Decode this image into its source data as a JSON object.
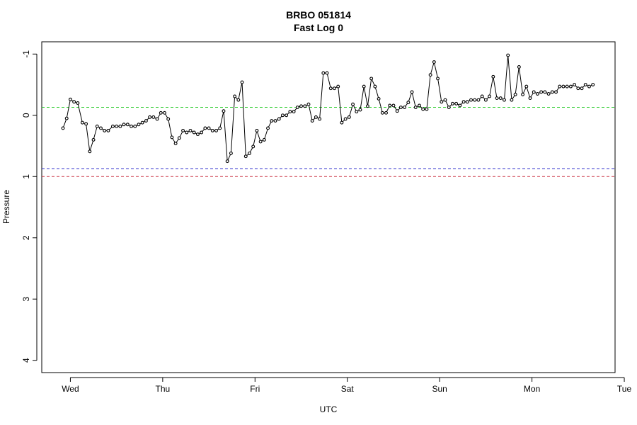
{
  "chart_data": {
    "type": "line",
    "title": "BRBO 051814",
    "subtitle": "Fast Log 0",
    "xlabel": "UTC",
    "ylabel": "Pressure",
    "x_ticks": [
      "Wed",
      "Thu",
      "Fri",
      "Sat",
      "Sun",
      "Mon",
      "Tue"
    ],
    "y_ticks": [
      -1,
      0,
      1,
      2,
      3,
      4
    ],
    "y_tick_labels": [
      "-1",
      "0",
      "1",
      "2",
      "3",
      "4"
    ],
    "ylim": [
      4.2,
      -1.2
    ],
    "xlim_days": [
      -0.31,
      5.9
    ],
    "y_reversed": true,
    "grid": false,
    "series": [
      {
        "color": "#000000",
        "marker": "circle",
        "points": [
          [
            -0.08,
            0.21
          ],
          [
            -0.04,
            0.05
          ],
          [
            0.0,
            -0.26
          ],
          [
            0.04,
            -0.22
          ],
          [
            0.08,
            -0.2
          ],
          [
            0.13,
            0.12
          ],
          [
            0.17,
            0.14
          ],
          [
            0.21,
            0.59
          ],
          [
            0.25,
            0.4
          ],
          [
            0.29,
            0.18
          ],
          [
            0.33,
            0.21
          ],
          [
            0.37,
            0.25
          ],
          [
            0.41,
            0.25
          ],
          [
            0.46,
            0.18
          ],
          [
            0.5,
            0.18
          ],
          [
            0.54,
            0.18
          ],
          [
            0.58,
            0.15
          ],
          [
            0.62,
            0.15
          ],
          [
            0.66,
            0.18
          ],
          [
            0.7,
            0.18
          ],
          [
            0.74,
            0.15
          ],
          [
            0.78,
            0.12
          ],
          [
            0.82,
            0.09
          ],
          [
            0.86,
            0.03
          ],
          [
            0.9,
            0.03
          ],
          [
            0.94,
            0.06
          ],
          [
            0.98,
            -0.04
          ],
          [
            1.02,
            -0.04
          ],
          [
            1.06,
            0.06
          ],
          [
            1.1,
            0.36
          ],
          [
            1.14,
            0.46
          ],
          [
            1.18,
            0.37
          ],
          [
            1.22,
            0.25
          ],
          [
            1.26,
            0.28
          ],
          [
            1.3,
            0.25
          ],
          [
            1.34,
            0.28
          ],
          [
            1.38,
            0.31
          ],
          [
            1.42,
            0.28
          ],
          [
            1.46,
            0.21
          ],
          [
            1.5,
            0.21
          ],
          [
            1.54,
            0.25
          ],
          [
            1.58,
            0.25
          ],
          [
            1.62,
            0.21
          ],
          [
            1.66,
            -0.07
          ],
          [
            1.7,
            0.75
          ],
          [
            1.74,
            0.62
          ],
          [
            1.78,
            -0.31
          ],
          [
            1.82,
            -0.25
          ],
          [
            1.86,
            -0.54
          ],
          [
            1.9,
            0.67
          ],
          [
            1.94,
            0.62
          ],
          [
            1.98,
            0.51
          ],
          [
            2.02,
            0.25
          ],
          [
            2.06,
            0.43
          ],
          [
            2.1,
            0.4
          ],
          [
            2.14,
            0.21
          ],
          [
            2.18,
            0.09
          ],
          [
            2.22,
            0.09
          ],
          [
            2.26,
            0.06
          ],
          [
            2.3,
            0.0
          ],
          [
            2.34,
            0.0
          ],
          [
            2.38,
            -0.06
          ],
          [
            2.42,
            -0.06
          ],
          [
            2.46,
            -0.13
          ],
          [
            2.5,
            -0.15
          ],
          [
            2.54,
            -0.15
          ],
          [
            2.58,
            -0.18
          ],
          [
            2.62,
            0.09
          ],
          [
            2.66,
            0.03
          ],
          [
            2.7,
            0.06
          ],
          [
            2.74,
            -0.69
          ],
          [
            2.78,
            -0.69
          ],
          [
            2.82,
            -0.44
          ],
          [
            2.86,
            -0.44
          ],
          [
            2.9,
            -0.47
          ],
          [
            2.94,
            0.12
          ],
          [
            2.98,
            0.06
          ],
          [
            3.02,
            0.03
          ],
          [
            3.06,
            -0.18
          ],
          [
            3.1,
            -0.06
          ],
          [
            3.14,
            -0.09
          ],
          [
            3.18,
            -0.47
          ],
          [
            3.22,
            -0.15
          ],
          [
            3.26,
            -0.6
          ],
          [
            3.3,
            -0.47
          ],
          [
            3.34,
            -0.27
          ],
          [
            3.38,
            -0.04
          ],
          [
            3.42,
            -0.04
          ],
          [
            3.46,
            -0.16
          ],
          [
            3.5,
            -0.16
          ],
          [
            3.54,
            -0.07
          ],
          [
            3.58,
            -0.13
          ],
          [
            3.62,
            -0.13
          ],
          [
            3.66,
            -0.21
          ],
          [
            3.7,
            -0.38
          ],
          [
            3.74,
            -0.13
          ],
          [
            3.78,
            -0.16
          ],
          [
            3.82,
            -0.1
          ],
          [
            3.86,
            -0.1
          ],
          [
            3.9,
            -0.66
          ],
          [
            3.94,
            -0.87
          ],
          [
            3.98,
            -0.6
          ],
          [
            4.02,
            -0.22
          ],
          [
            4.06,
            -0.25
          ],
          [
            4.1,
            -0.13
          ],
          [
            4.14,
            -0.19
          ],
          [
            4.18,
            -0.19
          ],
          [
            4.22,
            -0.16
          ],
          [
            4.26,
            -0.22
          ],
          [
            4.3,
            -0.22
          ],
          [
            4.34,
            -0.25
          ],
          [
            4.38,
            -0.25
          ],
          [
            4.42,
            -0.25
          ],
          [
            4.46,
            -0.31
          ],
          [
            4.5,
            -0.25
          ],
          [
            4.54,
            -0.31
          ],
          [
            4.58,
            -0.63
          ],
          [
            4.62,
            -0.28
          ],
          [
            4.66,
            -0.28
          ],
          [
            4.7,
            -0.25
          ],
          [
            4.74,
            -0.98
          ],
          [
            4.78,
            -0.25
          ],
          [
            4.82,
            -0.34
          ],
          [
            4.86,
            -0.79
          ],
          [
            4.9,
            -0.34
          ],
          [
            4.94,
            -0.47
          ],
          [
            4.98,
            -0.28
          ],
          [
            5.02,
            -0.38
          ],
          [
            5.06,
            -0.35
          ],
          [
            5.1,
            -0.38
          ],
          [
            5.14,
            -0.38
          ],
          [
            5.18,
            -0.35
          ],
          [
            5.22,
            -0.38
          ],
          [
            5.26,
            -0.38
          ],
          [
            5.3,
            -0.47
          ],
          [
            5.34,
            -0.47
          ],
          [
            5.38,
            -0.47
          ],
          [
            5.42,
            -0.47
          ],
          [
            5.46,
            -0.5
          ],
          [
            5.5,
            -0.44
          ],
          [
            5.54,
            -0.44
          ],
          [
            5.58,
            -0.5
          ],
          [
            5.62,
            -0.47
          ],
          [
            5.66,
            -0.5
          ]
        ]
      }
    ],
    "reference_lines": [
      {
        "y": -0.13,
        "color": "#33cc33",
        "style": "dashed"
      },
      {
        "y": 0.87,
        "color": "#3333cc",
        "style": "dashed"
      },
      {
        "y": 1.0,
        "color": "#cc3344",
        "style": "dashed"
      }
    ]
  }
}
